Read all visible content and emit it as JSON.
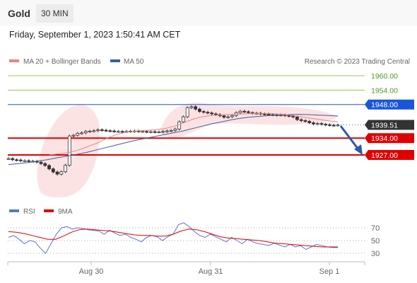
{
  "header": {
    "asset": "Gold",
    "timeframe": "30 MIN",
    "datetime": "Friday, September 1, 2023 1:50:41 AM CET"
  },
  "legend": {
    "bb": "MA 20 + Bollinger Bands",
    "ma50": "MA 50",
    "credit": "Research © 2023 Trading Central"
  },
  "rsi_legend": {
    "rsi": "RSI",
    "ma9": "9MA"
  },
  "colors": {
    "resistance": "#8fc85a",
    "pivot": "#1a55d8",
    "support": "#e00000",
    "price": "#333333",
    "bb": "#f08080",
    "ma50": "#355fa0",
    "rsi": "#5577cc"
  },
  "chart_data": [
    {
      "type": "line",
      "title": "",
      "x_ticks": [
        "Aug 30",
        "Aug 31",
        "Sep 1"
      ],
      "ylim": [
        1918,
        1966
      ],
      "levels": [
        {
          "value": 1960.0,
          "label": "1960.00",
          "kind": "resistance"
        },
        {
          "value": 1954.0,
          "label": "1954.00",
          "kind": "resistance"
        },
        {
          "value": 1948.0,
          "label": "1948.00",
          "kind": "pivot"
        },
        {
          "value": 1939.51,
          "label": "1939.51",
          "kind": "last-price"
        },
        {
          "value": 1934.0,
          "label": "1934.00",
          "kind": "support"
        },
        {
          "value": 1927.0,
          "label": "1927.00",
          "kind": "support"
        }
      ],
      "series": [
        {
          "name": "Gold",
          "values": [
            1925.5,
            1925.0,
            1924.9,
            1924.6,
            1924.6,
            1924.4,
            1924.4,
            1924.0,
            1923.4,
            1922.6,
            1921.2,
            1919.9,
            1919.0,
            1920.0,
            1922.7,
            1934.9,
            1935.2,
            1936.0,
            1936.2,
            1936.8,
            1936.9,
            1937.1,
            1937.5,
            1937.3,
            1937.1,
            1937.0,
            1936.8,
            1936.8,
            1936.7,
            1936.8,
            1936.9,
            1937.0,
            1936.8,
            1936.8,
            1936.6,
            1936.7,
            1936.6,
            1936.6,
            1936.8,
            1937.0,
            1937.2,
            1937.8,
            1940.8,
            1942.9,
            1946.7,
            1947.1,
            1946.1,
            1945.1,
            1944.8,
            1944.5,
            1944.1,
            1943.8,
            1943.3,
            1942.7,
            1942.9,
            1943.4,
            1944.6,
            1945.2,
            1945.0,
            1944.6,
            1944.4,
            1944.4,
            1944.1,
            1944.0,
            1943.8,
            1943.7,
            1943.6,
            1943.7,
            1943.4,
            1943.2,
            1942.8,
            1941.7,
            1941.3,
            1941.0,
            1940.4,
            1939.9,
            1940.1,
            1939.8,
            1939.6,
            1939.4,
            1939.3,
            1939.5
          ]
        },
        {
          "name": "MA 50",
          "values": [
            1923.0,
            1923.4,
            1923.8,
            1924.4,
            1925.0,
            1925.8,
            1926.5,
            1927.2,
            1928.0,
            1929.0,
            1930.0,
            1931.0,
            1932.0,
            1933.0,
            1933.8,
            1934.6,
            1935.4,
            1936.2,
            1937.0,
            1938.0,
            1939.0,
            1940.0,
            1940.8,
            1941.6,
            1942.3,
            1942.8,
            1943.1,
            1943.4,
            1943.6,
            1943.8,
            1943.9,
            1943.8,
            1943.6,
            1943.4,
            1943.2
          ]
        },
        {
          "name": "MA 20",
          "values": [
            1927.0,
            1927.5,
            1928.0,
            1929.0,
            1930.5,
            1932.0,
            1934.0,
            1935.5,
            1936.5,
            1937.0,
            1937.2,
            1937.5,
            1938.0,
            1939.0,
            1940.5,
            1942.0,
            1943.0,
            1943.5,
            1943.7,
            1943.9,
            1944.0,
            1944.2,
            1944.3,
            1944.2,
            1944.0,
            1943.6,
            1943.0,
            1942.4,
            1941.8,
            1941.2,
            1940.8
          ]
        }
      ]
    },
    {
      "type": "line",
      "title": "",
      "y_ticks": [
        70,
        50,
        30
      ],
      "ylim": [
        20,
        80
      ],
      "series": [
        {
          "name": "RSI",
          "values": [
            55,
            58,
            52,
            45,
            50,
            48,
            38,
            30,
            45,
            60,
            70,
            72,
            68,
            70,
            69,
            67,
            66,
            65,
            60,
            66,
            62,
            58,
            60,
            55,
            52,
            48,
            55,
            58,
            56,
            50,
            56,
            60,
            75,
            78,
            72,
            64,
            58,
            55,
            60,
            56,
            52,
            48,
            55,
            50,
            45,
            52,
            48,
            45,
            44,
            42,
            46,
            43,
            40,
            44,
            40,
            42,
            36,
            40,
            44,
            42,
            40,
            39,
            39
          ]
        },
        {
          "name": "9MA",
          "values": [
            64,
            63,
            61,
            58,
            55,
            52,
            52,
            57,
            63,
            67,
            68,
            67,
            66,
            65,
            63,
            61,
            59,
            58,
            58,
            57,
            57,
            60,
            65,
            68,
            67,
            64,
            60,
            56,
            54,
            53,
            52,
            51,
            50,
            48,
            46,
            45,
            44,
            43,
            42,
            41,
            40,
            40,
            40
          ]
        }
      ]
    }
  ]
}
